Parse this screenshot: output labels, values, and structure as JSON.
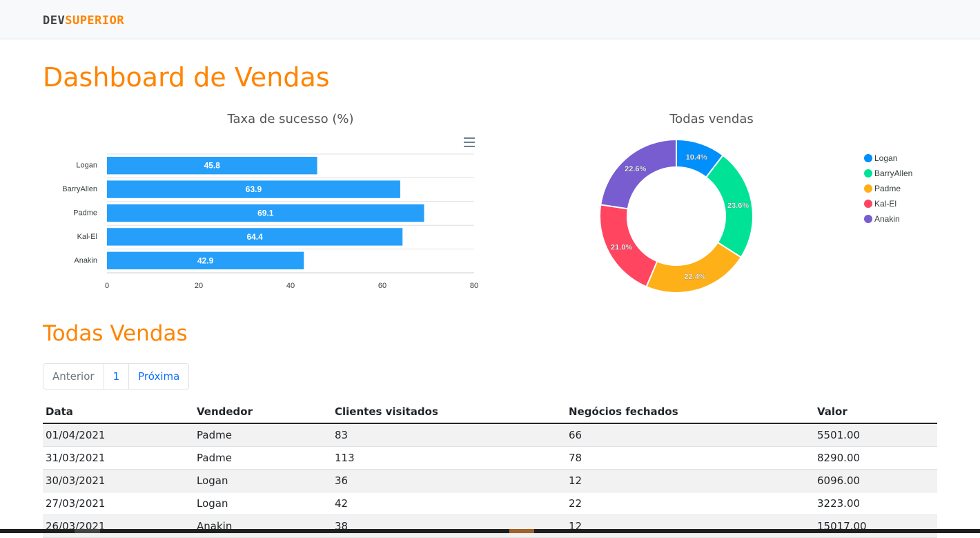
{
  "brand": {
    "part1": "DEV",
    "part2": "SUPERIOR"
  },
  "page_title": "Dashboard de Vendas",
  "bar_chart_title": "Taxa de sucesso (%)",
  "donut_chart_title": "Todas vendas",
  "section_title": "Todas Vendas",
  "pagination": {
    "prev": "Anterior",
    "page": "1",
    "next": "Próxima"
  },
  "table": {
    "headers": [
      "Data",
      "Vendedor",
      "Clientes visitados",
      "Negócios fechados",
      "Valor"
    ],
    "rows": [
      [
        "01/04/2021",
        "Padme",
        "83",
        "66",
        "5501.00"
      ],
      [
        "31/03/2021",
        "Padme",
        "113",
        "78",
        "8290.00"
      ],
      [
        "30/03/2021",
        "Logan",
        "36",
        "12",
        "6096.00"
      ],
      [
        "27/03/2021",
        "Logan",
        "42",
        "22",
        "3223.00"
      ],
      [
        "26/03/2021",
        "Anakin",
        "38",
        "12",
        "15017.00"
      ]
    ]
  },
  "chart_data": [
    {
      "type": "bar",
      "orientation": "horizontal",
      "title": "Taxa de sucesso (%)",
      "categories": [
        "Logan",
        "BarryAllen",
        "Padme",
        "Kal-El",
        "Anakin"
      ],
      "values": [
        45.8,
        63.9,
        69.1,
        64.4,
        42.9
      ],
      "xlim": [
        0,
        80
      ],
      "xticks": [
        0,
        20,
        40,
        60,
        80
      ],
      "grid": true,
      "color": "#269ffb",
      "menu_icon": "hamburger-menu-icon"
    },
    {
      "type": "pie",
      "variant": "donut",
      "title": "Todas vendas",
      "labels": [
        "Logan",
        "BarryAllen",
        "Padme",
        "Kal-El",
        "Anakin"
      ],
      "values": [
        10.4,
        23.6,
        22.4,
        21.0,
        22.6
      ],
      "data_labels": [
        "10.4%",
        "23.6%",
        "22.4%",
        "21.0%",
        "22.6%"
      ],
      "colors": [
        "#008FFB",
        "#00E396",
        "#FEB019",
        "#FF4560",
        "#775DD0"
      ],
      "legend": "right"
    }
  ]
}
